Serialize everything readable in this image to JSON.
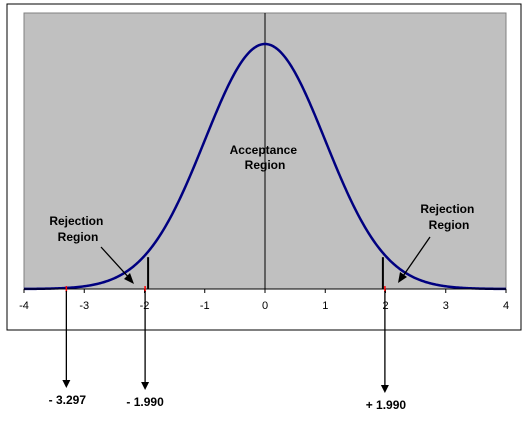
{
  "chart_data": {
    "type": "line",
    "title": "",
    "xlabel": "",
    "ylabel": "",
    "xlim": [
      -4,
      4
    ],
    "x_ticks": [
      "-4",
      "-3",
      "-2",
      "-1",
      "0",
      "1",
      "2",
      "3",
      "4"
    ],
    "series": [
      {
        "distribution": "normal",
        "mean": 0,
        "sd": 1,
        "color": "#000080"
      }
    ],
    "critical_values": [
      -1.99,
      1.99
    ],
    "test_statistic": -3.297,
    "annotations": {
      "acceptance": [
        "Acceptance",
        "Region"
      ],
      "rejection_left": [
        "Rejection",
        "Region"
      ],
      "rejection_right": [
        "Rejection",
        "Region"
      ]
    },
    "marker_labels": {
      "test_stat": "- 3.297",
      "crit_left": "- 1.990",
      "crit_right": "+ 1.990"
    },
    "plot_background": "#c0c0c0",
    "curve_color": "#000080",
    "marker_color": "#ff0000",
    "grid": false
  }
}
